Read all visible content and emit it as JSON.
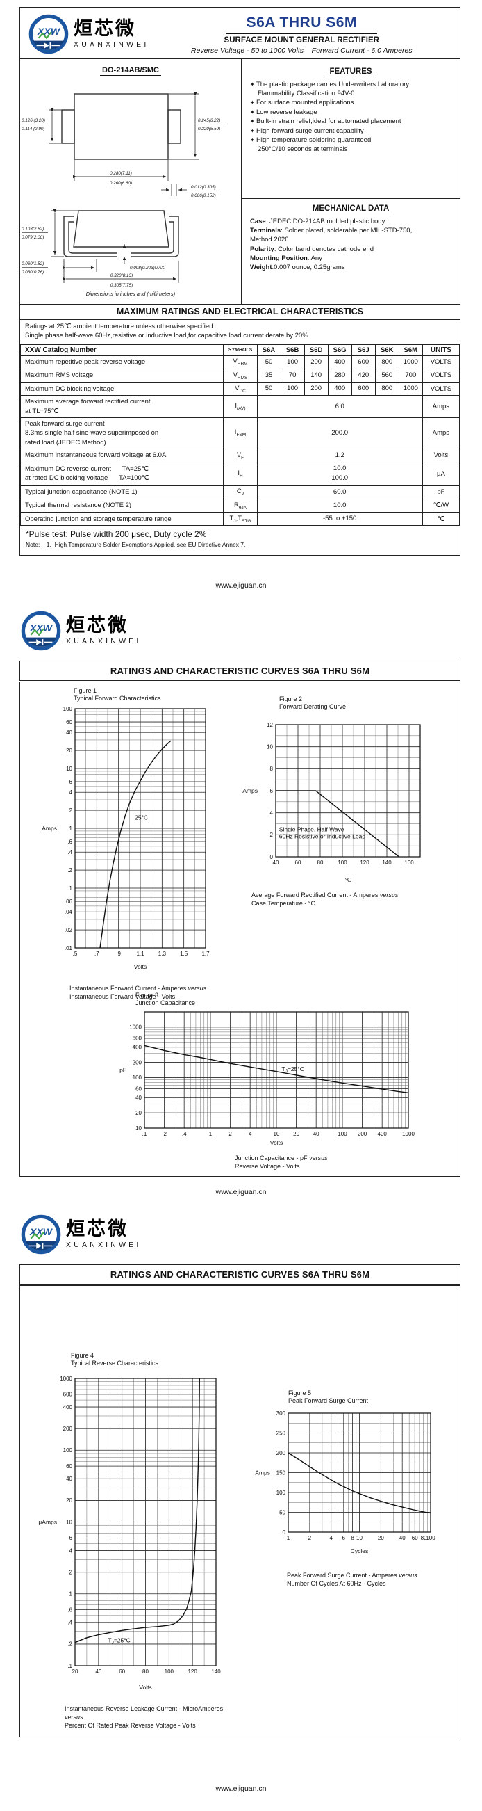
{
  "logo": {
    "cn": "烜芯微",
    "en": "XUANXINWEI",
    "mark": "XXW"
  },
  "footer": "www.ejiguan.cn",
  "page1": {
    "title": "S6A THRU S6M",
    "subtitle": "SURFACE MOUNT GENERAL RECTIFIER",
    "tagline": "Reverse Voltage - 50 to 1000 Volts    Forward Current - 6.0 Amperes",
    "package": {
      "name": "DO-214AB/SMC",
      "note": "Dimensions in inches and (millimeters)",
      "dims": {
        "left_tab": [
          "0.126 (3.20)",
          "0.114 (2.90)"
        ],
        "body_height": [
          "0.245(6.22)",
          "0.220(5.59)"
        ],
        "body_width": [
          "0.280(7.11)",
          "0.260(6.60)"
        ],
        "tab_thickness": [
          "0.012(0.305)",
          "0.006(0.152)"
        ],
        "side_height": [
          "0.103(2.62)",
          "0.079(2.00)"
        ],
        "lead_length": [
          "0.060(1.52)",
          "0.030(0.76)"
        ],
        "standoff": "0.008(0.203)MAX.",
        "total_width": [
          "0.320(8.13)",
          "0.305(7.75)"
        ]
      }
    },
    "features": {
      "heading": "FEATURES",
      "items": [
        "The plastic package carries Underwriters Laboratory\nFlammability Classification 94V-0",
        "For surface mounted applications",
        "Low reverse leakage",
        "Built-in strain relief,ideal for automated placement",
        "High forward surge current capability",
        "High temperature soldering guaranteed:\n250°C/10 seconds at terminals"
      ]
    },
    "mechanical": {
      "heading": "MECHANICAL DATA",
      "items": [
        {
          "label": "Case",
          "text": ": JEDEC DO-214AB molded plastic body"
        },
        {
          "label": "Terminals",
          "text": ": Solder plated, solderable per MIL-STD-750,\nMethod 2026"
        },
        {
          "label": "Polarity",
          "text": ": Color band denotes cathode end"
        },
        {
          "label": "Mounting Position",
          "text": ": Any"
        },
        {
          "label": "Weight",
          "text": ":0.007 ounce, 0.25grams"
        }
      ]
    },
    "ratings": {
      "heading": "MAXIMUM RATINGS AND ELECTRICAL CHARACTERISTICS",
      "note1": "Ratings at 25℃ ambient temperature unless otherwise specified.",
      "note2": "Single phase half-wave 60Hz,resistive or inductive load,for capacitive load current derate by 20%.",
      "table": {
        "header_label": "XXW Catalog Number",
        "symbols_header": "SYMBOLS",
        "parts": [
          "S6A",
          "S6B",
          "S6D",
          "S6G",
          "S6J",
          "S6K",
          "S6M"
        ],
        "units_header": "UNITS",
        "rows": [
          {
            "label": [
              "Maximum repetitive peak reverse voltage"
            ],
            "symbol": [
              {
                "t": "V"
              },
              {
                "s": "RRM"
              }
            ],
            "values": {
              "type": "cols",
              "cols": [
                "50",
                "100",
                "200",
                "400",
                "600",
                "800",
                "1000"
              ]
            },
            "unit": "VOLTS"
          },
          {
            "label": [
              "Maximum RMS voltage"
            ],
            "symbol": [
              {
                "t": "V"
              },
              {
                "s": "RMS"
              }
            ],
            "values": {
              "type": "cols",
              "cols": [
                "35",
                "70",
                "140",
                "280",
                "420",
                "560",
                "700"
              ]
            },
            "unit": "VOLTS"
          },
          {
            "label": [
              "Maximum DC blocking voltage"
            ],
            "symbol": [
              {
                "t": "V"
              },
              {
                "s": "DC"
              }
            ],
            "values": {
              "type": "cols",
              "cols": [
                "50",
                "100",
                "200",
                "400",
                "600",
                "800",
                "1000"
              ]
            },
            "unit": "VOLTS"
          },
          {
            "label": [
              "Maximum average forward rectified current",
              "at TL=75℃"
            ],
            "symbol": [
              {
                "t": "I"
              },
              {
                "s": "(AV)"
              }
            ],
            "values": {
              "type": "span",
              "lines": [
                "6.0"
              ]
            },
            "unit": "Amps"
          },
          {
            "label": [
              "Peak forward surge current",
              "8.3ms single half sine-wave superimposed on",
              "rated load (JEDEC Method)"
            ],
            "symbol": [
              {
                "t": "I"
              },
              {
                "s": "FSM"
              }
            ],
            "values": {
              "type": "span",
              "lines": [
                "200.0"
              ]
            },
            "unit": "Amps"
          },
          {
            "label": [
              "Maximum instantaneous forward voltage at 6.0A"
            ],
            "symbol": [
              {
                "t": "V"
              },
              {
                "s": "F"
              }
            ],
            "values": {
              "type": "span",
              "lines": [
                "1.2"
              ]
            },
            "unit": "Volts"
          },
          {
            "label": [
              "Maximum DC reverse current      TA=25℃",
              "at rated DC blocking voltage      TA=100℃"
            ],
            "symbol": [
              {
                "t": "I"
              },
              {
                "s": "R"
              }
            ],
            "values": {
              "type": "span",
              "lines": [
                "10.0",
                "100.0"
              ]
            },
            "unit": "μA"
          },
          {
            "label": [
              "Typical junction capacitance (NOTE 1)"
            ],
            "symbol": [
              {
                "t": "C"
              },
              {
                "s": "J"
              }
            ],
            "values": {
              "type": "span",
              "lines": [
                "60.0"
              ]
            },
            "unit": "pF"
          },
          {
            "label": [
              "Typical thermal resistance (NOTE 2)"
            ],
            "symbol": [
              {
                "t": "R"
              },
              {
                "s": "θJA"
              }
            ],
            "values": {
              "type": "span",
              "lines": [
                "10.0"
              ]
            },
            "unit": "℃/W"
          },
          {
            "label": [
              "Operating junction and storage temperature range"
            ],
            "symbol": [
              {
                "t": "T"
              },
              {
                "s": "J"
              },
              {
                "t": ",T"
              },
              {
                "s": "STG"
              }
            ],
            "values": {
              "type": "span",
              "lines": [
                "-55 to +150"
              ]
            },
            "unit": "℃"
          }
        ]
      },
      "pulse_note": "*Pulse test: Pulse width 200 μsec, Duty cycle 2%",
      "note_line": "Note:    1.  High Temperature Solder Exemptions Applied, see EU Directive Annex 7."
    }
  },
  "page2": {
    "heading": "RATINGS AND CHARACTERISTIC CURVES S6A THRU S6M"
  },
  "page3": {
    "heading": "RATINGS AND CHARACTERISTIC CURVES S6A THRU S6M"
  },
  "chart_data": [
    {
      "id": "fig1",
      "type": "line",
      "title": "Figure 1",
      "subtitle": "Typical Forward Characteristics",
      "xlabel": "Volts",
      "ylabel": "Amps",
      "x_scale": "linear",
      "y_scale": "log",
      "x_range": [
        0.5,
        1.7
      ],
      "y_range": [
        0.01,
        100
      ],
      "x_ticks": [
        ".5",
        ".7",
        ".9",
        "1.1",
        "1.3",
        "1.5",
        "1.7"
      ],
      "x_minor_step": 0.1,
      "y_ticks": [
        "100",
        "60",
        "40",
        "20",
        "10",
        "6",
        "4",
        "2",
        "1",
        ".6",
        ".4",
        ".2",
        ".1",
        ".06",
        ".04",
        ".02",
        ".01"
      ],
      "annotations": [
        {
          "x": 1.05,
          "y": 1.4,
          "text": "25°C"
        }
      ],
      "caption": [
        "Instantaneous Forward Current - Amperes versus",
        "Instantaneous Forward Voltage - Volts"
      ],
      "points": [
        [
          0.73,
          0.01
        ],
        [
          0.76,
          0.025
        ],
        [
          0.79,
          0.06
        ],
        [
          0.82,
          0.13
        ],
        [
          0.85,
          0.25
        ],
        [
          0.88,
          0.45
        ],
        [
          0.92,
          0.9
        ],
        [
          0.96,
          1.6
        ],
        [
          1.0,
          2.6
        ],
        [
          1.05,
          4.2
        ],
        [
          1.1,
          6.2
        ],
        [
          1.15,
          9
        ],
        [
          1.2,
          12.5
        ],
        [
          1.25,
          16.5
        ],
        [
          1.3,
          21
        ],
        [
          1.35,
          26
        ],
        [
          1.38,
          29
        ]
      ]
    },
    {
      "id": "fig2",
      "type": "line",
      "title": "Figure 2",
      "subtitle": "Forward Derating Curve",
      "xlabel": "℃",
      "ylabel": "Amps",
      "x_scale": "linear",
      "y_scale": "linear",
      "x_range": [
        40,
        170
      ],
      "y_range": [
        0,
        12
      ],
      "x_ticks": [
        "40",
        "60",
        "80",
        "100",
        "120",
        "140",
        "160"
      ],
      "x_minor_step": 10,
      "y_ticks": [
        "0",
        "2",
        "4",
        "6",
        "8",
        "10",
        "12"
      ],
      "y_minor_step": 1,
      "annotations": [
        {
          "x": 43,
          "y": 2.3,
          "lines": [
            "Single Phase, Half Wave",
            "60Hz Resistive or Inductive Load"
          ]
        }
      ],
      "caption": [
        "Average Forward Rectified Current - Amperes versus",
        "Case Temperature - °C"
      ],
      "points": [
        [
          40,
          6
        ],
        [
          76,
          6
        ],
        [
          151,
          0
        ]
      ]
    },
    {
      "id": "fig3",
      "type": "line",
      "title": "Figure 3",
      "subtitle": "Junction Capacitance",
      "xlabel": "Volts",
      "ylabel": "pF",
      "x_scale": "log",
      "y_scale": "log",
      "x_range": [
        0.1,
        1000
      ],
      "y_range": [
        10,
        2000
      ],
      "x_ticks": [
        ".1",
        ".2",
        ".4",
        "1",
        "2",
        "4",
        "10",
        "20",
        "40",
        "100",
        "200",
        "400",
        "1000"
      ],
      "y_ticks": [
        "1000",
        "600",
        "400",
        "200",
        "100",
        "60",
        "40",
        "20",
        "10"
      ],
      "annotations": [
        {
          "x": 12,
          "y": 135,
          "pre": "T",
          "sub": "J",
          "post": "=25°C"
        }
      ],
      "caption": [
        "Junction Capacitance - pF versus",
        "Reverse Voltage - Volts"
      ],
      "points": [
        [
          0.1,
          430
        ],
        [
          0.2,
          345
        ],
        [
          0.4,
          285
        ],
        [
          0.7,
          250
        ],
        [
          1,
          228
        ],
        [
          2,
          190
        ],
        [
          4,
          162
        ],
        [
          7,
          143
        ],
        [
          10,
          132
        ],
        [
          20,
          112
        ],
        [
          40,
          95
        ],
        [
          70,
          84
        ],
        [
          100,
          78
        ],
        [
          200,
          68
        ],
        [
          400,
          59
        ],
        [
          700,
          53
        ],
        [
          1000,
          50
        ]
      ]
    },
    {
      "id": "fig4",
      "type": "line",
      "title": "Figure 4",
      "subtitle": "Typical Reverse Characteristics",
      "xlabel": "Volts",
      "ylabel": "μAmps",
      "x_scale": "linear",
      "y_scale": "log",
      "x_range": [
        20,
        140
      ],
      "y_range": [
        0.1,
        1000
      ],
      "x_ticks": [
        "20",
        "40",
        "60",
        "80",
        "100",
        "120",
        "140"
      ],
      "x_minor_step": 10,
      "y_ticks": [
        "1000",
        "600",
        "400",
        "200",
        "100",
        "60",
        "40",
        "20",
        "10",
        "6",
        "4",
        "2",
        "1",
        ".6",
        ".4",
        ".2",
        ".1"
      ],
      "annotations": [
        {
          "x": 48,
          "y": 0.21,
          "pre": "T",
          "sub": "J",
          "post": "=25°C"
        }
      ],
      "caption": [
        "Instantaneous Reverse Leakage Current - MicroAmperes versus",
        "Percent Of Rated Peak Reverse Voltage - Volts"
      ],
      "points": [
        [
          20,
          0.21
        ],
        [
          30,
          0.245
        ],
        [
          40,
          0.27
        ],
        [
          50,
          0.29
        ],
        [
          60,
          0.31
        ],
        [
          70,
          0.325
        ],
        [
          80,
          0.34
        ],
        [
          90,
          0.35
        ],
        [
          100,
          0.365
        ],
        [
          104,
          0.38
        ],
        [
          108,
          0.42
        ],
        [
          112,
          0.5
        ],
        [
          115,
          0.62
        ],
        [
          117,
          0.8
        ],
        [
          119,
          1.1
        ],
        [
          120,
          1.6
        ],
        [
          121,
          2.4
        ],
        [
          122,
          4
        ],
        [
          123,
          8
        ],
        [
          124,
          20
        ],
        [
          125,
          70
        ],
        [
          125.7,
          300
        ],
        [
          126,
          1000
        ]
      ]
    },
    {
      "id": "fig5",
      "type": "line",
      "title": "Figure 5",
      "subtitle": "Peak Forward Surge Current",
      "xlabel": "Cycles",
      "ylabel": "Amps",
      "x_scale": "log",
      "y_scale": "linear",
      "x_range": [
        1,
        100
      ],
      "y_range": [
        0,
        300
      ],
      "x_ticks": [
        "1",
        "2",
        "4",
        "6",
        "8",
        "10",
        "20",
        "40",
        "60",
        "80",
        "100"
      ],
      "y_ticks": [
        "0",
        "50",
        "100",
        "150",
        "200",
        "250",
        "300"
      ],
      "y_minor_step": 25,
      "caption": [
        "Peak Forward Surge Current - Amperes versus",
        "Number Of Cycles At 60Hz - Cycles"
      ],
      "points": [
        [
          1,
          200
        ],
        [
          1.5,
          180
        ],
        [
          2,
          165
        ],
        [
          3,
          145
        ],
        [
          4,
          132
        ],
        [
          5,
          122
        ],
        [
          6,
          115
        ],
        [
          8,
          104
        ],
        [
          10,
          97
        ],
        [
          14,
          87
        ],
        [
          20,
          78
        ],
        [
          28,
          70
        ],
        [
          40,
          63
        ],
        [
          55,
          57
        ],
        [
          70,
          53
        ],
        [
          85,
          50
        ],
        [
          100,
          48
        ]
      ]
    }
  ]
}
